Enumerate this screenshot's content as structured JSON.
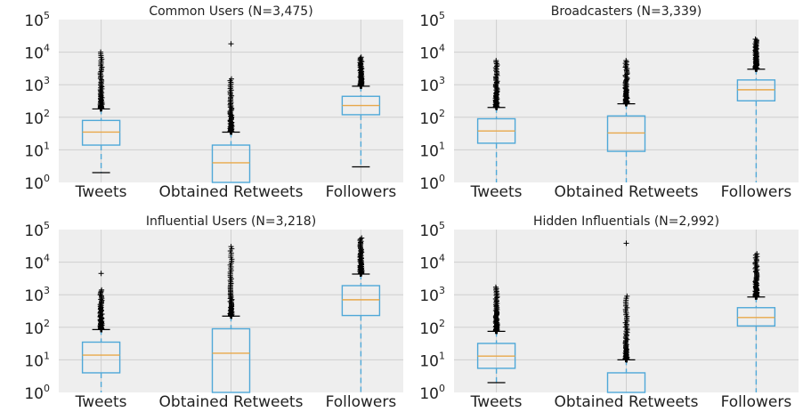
{
  "chart_data": [
    {
      "type": "box",
      "title": "Common Users (N=3,475)",
      "categories": [
        "Tweets",
        "Obtained Retweets",
        "Followers"
      ],
      "yscale": "log",
      "ylim": [
        1,
        100000
      ],
      "yticks": [
        "10",
        "10",
        "10",
        "10",
        "10",
        "10"
      ],
      "ytick_exponents": [
        "0",
        "1",
        "2",
        "3",
        "4",
        "5"
      ],
      "grid": true,
      "boxes": [
        {
          "whislo": 2,
          "q1": 14,
          "med": 35,
          "q3": 80,
          "whishi": 180,
          "outlier_max": 10000
        },
        {
          "whislo": 1,
          "q1": 1,
          "med": 4,
          "q3": 14,
          "whishi": 35,
          "outlier_max": 1500,
          "extreme_outlier": 18000
        },
        {
          "whislo": 3,
          "q1": 120,
          "med": 230,
          "q3": 440,
          "whishi": 900,
          "outlier_max": 7000
        }
      ]
    },
    {
      "type": "box",
      "title": "Broadcasters (N=3,339)",
      "categories": [
        "Tweets",
        "Obtained Retweets",
        "Followers"
      ],
      "yscale": "log",
      "ylim": [
        1,
        100000
      ],
      "yticks": [
        "10",
        "10",
        "10",
        "10",
        "10",
        "10"
      ],
      "ytick_exponents": [
        "0",
        "1",
        "2",
        "3",
        "4",
        "5"
      ],
      "grid": true,
      "boxes": [
        {
          "whislo": 1,
          "q1": 16,
          "med": 38,
          "q3": 90,
          "whishi": 200,
          "outlier_max": 5500
        },
        {
          "whislo": 1,
          "q1": 9,
          "med": 33,
          "q3": 110,
          "whishi": 260,
          "outlier_max": 5500
        },
        {
          "whislo": 1,
          "q1": 320,
          "med": 700,
          "q3": 1400,
          "whishi": 3000,
          "outlier_max": 25000
        }
      ]
    },
    {
      "type": "box",
      "title": "Influential Users (N=3,218)",
      "categories": [
        "Tweets",
        "Obtained Retweets",
        "Followers"
      ],
      "yscale": "log",
      "ylim": [
        1,
        100000
      ],
      "yticks": [
        "10",
        "10",
        "10",
        "10",
        "10",
        "10"
      ],
      "ytick_exponents": [
        "0",
        "1",
        "2",
        "3",
        "4",
        "5"
      ],
      "grid": true,
      "boxes": [
        {
          "whislo": 1,
          "q1": 4,
          "med": 14,
          "q3": 35,
          "whishi": 85,
          "outlier_max": 1400,
          "extreme_outlier": 4500
        },
        {
          "whislo": 1,
          "q1": 1,
          "med": 16,
          "q3": 90,
          "whishi": 220,
          "outlier_max": 30000
        },
        {
          "whislo": 1,
          "q1": 230,
          "med": 700,
          "q3": 1900,
          "whishi": 4300,
          "outlier_max": 55000
        }
      ]
    },
    {
      "type": "box",
      "title": "Hidden Influentials (N=2,992)",
      "categories": [
        "Tweets",
        "Obtained Retweets",
        "Followers"
      ],
      "yscale": "log",
      "ylim": [
        1,
        100000
      ],
      "yticks": [
        "10",
        "10",
        "10",
        "10",
        "10",
        "10"
      ],
      "ytick_exponents": [
        "0",
        "1",
        "2",
        "3",
        "4",
        "5"
      ],
      "grid": true,
      "boxes": [
        {
          "whislo": 2,
          "q1": 5.5,
          "med": 13,
          "q3": 32,
          "whishi": 75,
          "outlier_max": 1700
        },
        {
          "whislo": 1,
          "q1": 1,
          "med": 1,
          "q3": 4,
          "whishi": 10,
          "outlier_max": 900,
          "extreme_outlier": 38000
        },
        {
          "whislo": 1,
          "q1": 110,
          "med": 200,
          "q3": 400,
          "whishi": 850,
          "outlier_max": 18000
        }
      ]
    }
  ],
  "colors": {
    "box": "#4fa8d8",
    "median": "#e8a84a",
    "outlier": "#000000",
    "axes_bg": "#eeeeee",
    "grid": "#cfcfcf"
  }
}
